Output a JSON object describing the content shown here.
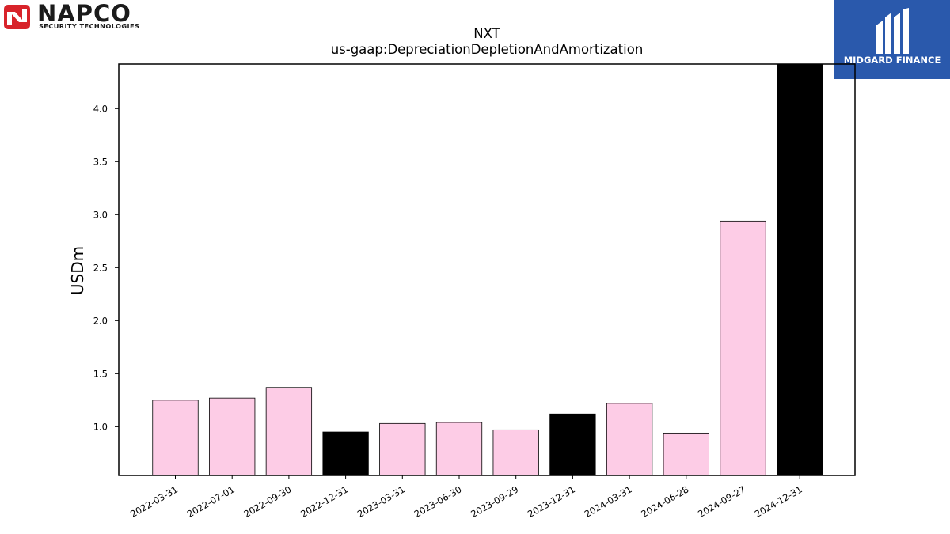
{
  "logos": {
    "napco": {
      "name": "NAPCO",
      "tagline": "SECURITY TECHNOLOGIES"
    },
    "midgard": {
      "name": "MIDGARD FINANCE"
    }
  },
  "chart_data": {
    "type": "bar",
    "title": "NXT",
    "subtitle": "us-gaap:DepreciationDepletionAndAmortization",
    "ylabel": "USDm",
    "xlabel": "",
    "ylim": [
      0.54,
      4.42
    ],
    "yticks": [
      1.0,
      1.5,
      2.0,
      2.5,
      3.0,
      3.5,
      4.0
    ],
    "categories": [
      "2022-03-31",
      "2022-07-01",
      "2022-09-30",
      "2022-12-31",
      "2023-03-31",
      "2023-06-30",
      "2023-09-29",
      "2023-12-31",
      "2024-03-31",
      "2024-06-28",
      "2024-09-27",
      "2024-12-31"
    ],
    "values": [
      1.25,
      1.27,
      1.37,
      0.95,
      1.03,
      1.04,
      0.97,
      1.12,
      1.22,
      0.94,
      2.94,
      4.42
    ],
    "bar_colors": [
      "#fdcce6",
      "#fdcce6",
      "#fdcce6",
      "#000000",
      "#fdcce6",
      "#fdcce6",
      "#fdcce6",
      "#000000",
      "#fdcce6",
      "#fdcce6",
      "#fdcce6",
      "#000000"
    ],
    "grid": false,
    "legend": "none"
  }
}
